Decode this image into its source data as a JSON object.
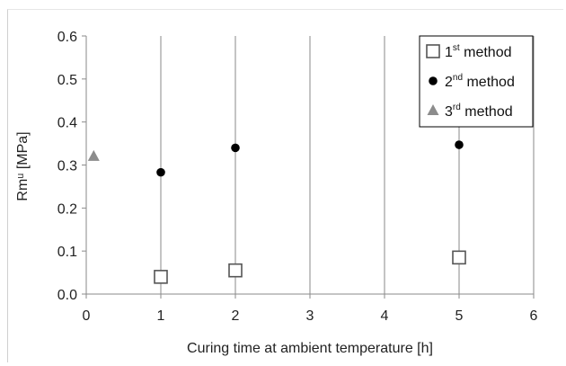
{
  "chart_data": {
    "type": "scatter",
    "xlabel": "Curing time at ambient temperature [h]",
    "ylabel": "Rmᵘ [MPa]",
    "xlim": [
      0,
      6
    ],
    "ylim": [
      0,
      0.6
    ],
    "xticks": [
      "0",
      "1",
      "2",
      "3",
      "4",
      "5",
      "6"
    ],
    "yticks": [
      "0.0",
      "0.1",
      "0.2",
      "0.3",
      "0.4",
      "0.5",
      "0.6"
    ],
    "grid": "vertical",
    "legend_position": "top-right",
    "series": [
      {
        "name_base": "1",
        "name_sup": "st",
        "name_rest": " method",
        "marker": "open-square",
        "color": "#555555",
        "x": [
          1,
          2,
          5
        ],
        "y": [
          0.04,
          0.055,
          0.085
        ]
      },
      {
        "name_base": "2",
        "name_sup": "nd",
        "name_rest": " method",
        "marker": "filled-circle",
        "color": "#000000",
        "x": [
          1,
          2,
          5
        ],
        "y": [
          0.283,
          0.34,
          0.347
        ]
      },
      {
        "name_base": "3",
        "name_sup": "rd",
        "name_rest": " method",
        "marker": "filled-triangle",
        "color": "#8c8c8c",
        "x": [
          0.1
        ],
        "y": [
          0.32
        ]
      }
    ]
  }
}
